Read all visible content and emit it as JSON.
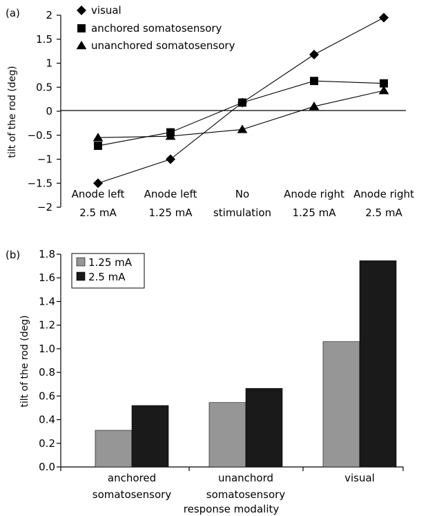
{
  "chart_data": [
    {
      "panel_label": "(a)",
      "type": "line",
      "categories": [
        [
          "Anode left",
          "2.5 mA"
        ],
        [
          "Anode left",
          "1.25 mA"
        ],
        [
          "No",
          "stimulation"
        ],
        [
          "Anode right",
          "1.25 mA"
        ],
        [
          "Anode right",
          "2.5 mA"
        ]
      ],
      "series": [
        {
          "name": "visual",
          "marker": "diamond",
          "values": [
            -1.5,
            -1.0,
            0.18,
            1.18,
            1.95
          ]
        },
        {
          "name": "anchored somatosensory",
          "marker": "square",
          "values": [
            -0.72,
            -0.44,
            0.18,
            0.63,
            0.58
          ]
        },
        {
          "name": "unanchored somatosensory",
          "marker": "triangle",
          "values": [
            -0.55,
            -0.52,
            -0.38,
            0.1,
            0.43
          ]
        }
      ],
      "ylabel": "tilt of the rod (deg)",
      "ylim": [
        -2,
        2
      ],
      "yticks": [
        "2",
        "1.5",
        "1",
        "0.5",
        "0",
        "-0.5",
        "-1",
        "-1.5",
        "-2"
      ],
      "legend_position": "top-left",
      "grid": false
    },
    {
      "panel_label": "(b)",
      "type": "bar",
      "categories": [
        [
          "anchored",
          "somatosensory"
        ],
        [
          "unanchord",
          "somatosensory"
        ],
        [
          "visual"
        ]
      ],
      "series": [
        {
          "name": "1.25 mA",
          "color": "#969696",
          "values": [
            0.31,
            0.545,
            1.06
          ]
        },
        {
          "name": "2.5 mA",
          "color": "#1a1a1a",
          "values": [
            0.52,
            0.665,
            1.745
          ]
        }
      ],
      "xlabel": "response modality",
      "ylabel": "tilt of the rod (deg)",
      "ylim": [
        0,
        1.8
      ],
      "yticks": [
        "0.0",
        "0.2",
        "0.4",
        "0.6",
        "0.8",
        "1.0",
        "1.2",
        "1.4",
        "1.6",
        "1.8"
      ],
      "legend_position": "top-left",
      "grid": false
    }
  ]
}
